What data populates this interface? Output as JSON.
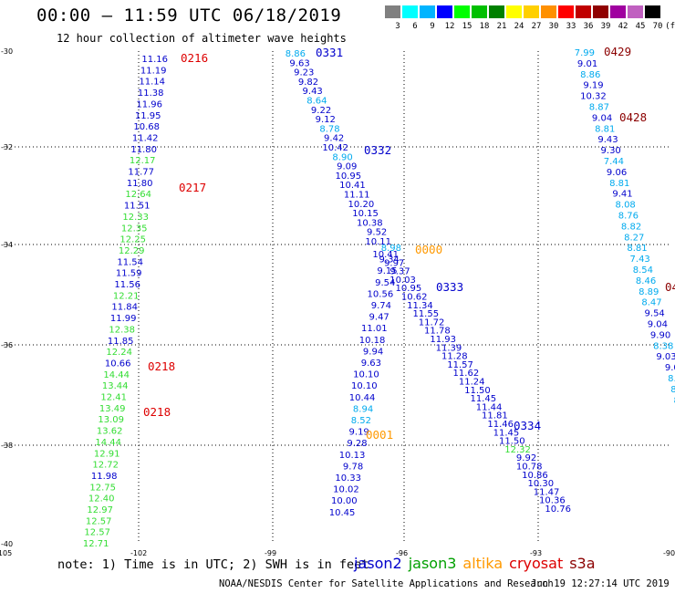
{
  "header": {
    "title": "00:00 – 11:59 UTC 06/18/2019",
    "subtitle": "12 hour collection of altimeter wave heights"
  },
  "legend": {
    "unit": "(ft)",
    "labels": [
      "3",
      "6",
      "9",
      "12",
      "15",
      "18",
      "21",
      "24",
      "27",
      "30",
      "33",
      "36",
      "39",
      "42",
      "45",
      "70"
    ],
    "colors": [
      "#808080",
      "#00ffff",
      "#00b4ff",
      "#0000ff",
      "#00ff00",
      "#00c000",
      "#008000",
      "#ffff00",
      "#ffd000",
      "#ff9000",
      "#ff0000",
      "#c00000",
      "#900000",
      "#a000a0",
      "#c060c0",
      "#000000"
    ]
  },
  "axes": {
    "lon_labels": [
      "-105",
      "-102",
      "-99",
      "-96",
      "-93",
      "-90"
    ],
    "lat_labels": [
      "-30",
      "-32",
      "-34",
      "-36",
      "-38",
      "-40"
    ]
  },
  "tracks": {
    "t1": [
      "11.16",
      "11.19",
      "11.14",
      "11.38",
      "11.96",
      "11.95",
      "10.68",
      "11.42",
      "11.80",
      "12.17",
      "11.77",
      "11.80",
      "12.64",
      "11.51",
      "12.33",
      "12.35",
      "12.25",
      "12.29",
      "11.54",
      "11.59",
      "11.56",
      "12.21",
      "11.84",
      "11.99",
      "12.38",
      "11.85",
      "12.24",
      "10.66",
      "14.44",
      "13.44",
      "12.41",
      "13.49",
      "13.09",
      "13.62",
      "14.44",
      "12.91",
      "12.72",
      "11.98",
      "12.75",
      "12.40",
      "12.97",
      "12.57",
      "12.57",
      "12.71"
    ],
    "t2": [
      "8.86",
      "9.63",
      "9.23",
      "9.82",
      "9.43",
      "8.64",
      "9.22",
      "9.12",
      "8.78",
      "9.42",
      "10.42",
      "8.90",
      "9.09",
      "10.95",
      "10.41",
      "11.11",
      "10.20",
      "10.15",
      "10.38",
      "9.52",
      "10.11",
      "8.98",
      "10.41",
      "9.34",
      "9.97",
      "9.15",
      "9.37",
      "9.54",
      "10.03",
      "10.56",
      "10.95",
      "9.74",
      "10.62",
      "9.47",
      "11.34",
      "11.01",
      "11.55",
      "10.18",
      "11.72",
      "9.94",
      "11.78",
      "9.63",
      "11.93",
      "10.10",
      "11.39",
      "10.10",
      "11.28",
      "10.44",
      "11.57",
      "8.94",
      "11.62",
      "8.52",
      "11.24",
      "9.19",
      "11.50",
      "9.28",
      "11.45",
      "10.13",
      "11.44",
      "9.78",
      "11.81",
      "10.33",
      "11.46",
      "10.02",
      "11.45",
      "10.00",
      "11.50",
      "10.45",
      "12.32",
      "9.92",
      "10.78",
      "10.86",
      "10.30",
      "11.47",
      "10.36",
      "10.76"
    ],
    "t3": [
      "7.99",
      "9.01",
      "8.86",
      "9.19",
      "10.32",
      "8.87",
      "9.04",
      "8.81",
      "9.43",
      "9.30",
      "7.44",
      "9.06",
      "8.81",
      "9.41",
      "8.08",
      "8.76",
      "8.82",
      "8.27",
      "8.81",
      "7.43",
      "8.54",
      "8.46",
      "8.89",
      "8.47",
      "9.54",
      "9.04",
      "9.90",
      "8.38",
      "9.03",
      "9.0",
      "8.4",
      "8.9",
      "8.4"
    ]
  },
  "times": [
    "0216",
    "0217",
    "0218",
    "0218",
    "0331",
    "0332",
    "0000",
    "0333",
    "0001",
    "0334",
    "0429",
    "0428",
    "04"
  ],
  "footer": {
    "note": "note: 1) Time is in UTC; 2) SWH is in feet",
    "satellites": [
      {
        "name": "jason2",
        "color": "#0000cc"
      },
      {
        "name": "jason3",
        "color": "#00a000"
      },
      {
        "name": "altika",
        "color": "#ff9900"
      },
      {
        "name": "cryosat",
        "color": "#dd0000"
      },
      {
        "name": "s3a",
        "color": "#8b0000"
      }
    ],
    "credit": "NOAA/NESDIS Center for Satellite Applications and Research",
    "timestamp": "Jun 19 12:27:14 UTC 2019"
  }
}
